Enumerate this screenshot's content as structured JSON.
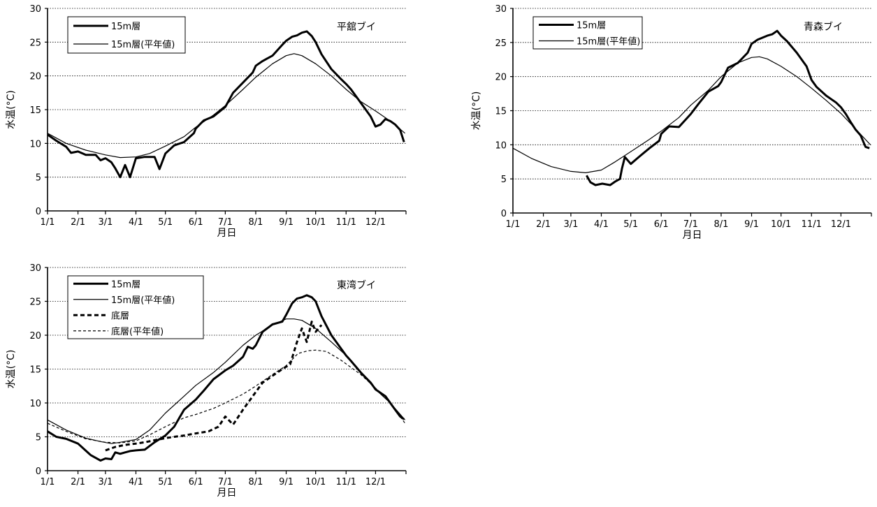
{
  "chart_data": [
    {
      "type": "line",
      "buoy": "平舘ブイ",
      "xlabel": "月日",
      "ylabel": "水温(°C)",
      "ylim": [
        0,
        30
      ],
      "yticks": [
        "0",
        "5",
        "10",
        "15",
        "20",
        "25",
        "30"
      ],
      "xlim": [
        1,
        366
      ],
      "xticks": [
        "1/1",
        "2/1",
        "3/1",
        "4/1",
        "5/1",
        "6/1",
        "7/1",
        "8/1",
        "9/1",
        "10/1",
        "11/1",
        "12/1"
      ],
      "grid": true,
      "legend_position": "top-left",
      "series": [
        {
          "name": "15m層",
          "style": "thick-solid",
          "x": [
            1,
            10,
            20,
            25,
            32,
            40,
            50,
            55,
            60,
            66,
            70,
            75,
            80,
            85,
            91,
            100,
            110,
            115,
            121,
            130,
            140,
            150,
            152,
            160,
            170,
            182,
            190,
            200,
            210,
            213,
            220,
            230,
            240,
            244,
            250,
            255,
            260,
            265,
            270,
            274,
            280,
            290,
            300,
            305,
            310,
            320,
            330,
            335,
            340,
            345,
            350,
            355,
            360,
            364
          ],
          "y": [
            11.3,
            10.4,
            9.5,
            8.6,
            8.8,
            8.3,
            8.3,
            7.5,
            7.8,
            7.2,
            6.3,
            5.0,
            6.8,
            5.0,
            7.8,
            8.0,
            8.0,
            6.2,
            8.5,
            9.7,
            10.2,
            11.5,
            12.2,
            13.4,
            14.0,
            15.4,
            17.5,
            19.0,
            20.5,
            21.5,
            22.2,
            23.0,
            24.6,
            25.2,
            25.8,
            26.0,
            26.4,
            26.6,
            25.9,
            25.0,
            23.2,
            21.0,
            19.5,
            18.8,
            18.0,
            16.0,
            14.0,
            12.5,
            12.8,
            13.6,
            13.3,
            12.8,
            12.0,
            10.2
          ]
        },
        {
          "name": "15m層(平年値)",
          "style": "thin-solid",
          "x": [
            1,
            20,
            40,
            60,
            75,
            91,
            105,
            121,
            140,
            152,
            170,
            182,
            200,
            213,
            230,
            244,
            252,
            260,
            274,
            290,
            305,
            320,
            335,
            350,
            365
          ],
          "y": [
            11.5,
            10.0,
            9.0,
            8.3,
            7.9,
            8.0,
            8.5,
            9.6,
            11.0,
            12.4,
            14.2,
            15.6,
            18.0,
            19.8,
            21.8,
            23.0,
            23.3,
            23.0,
            21.8,
            20.0,
            18.0,
            16.2,
            14.8,
            13.3,
            11.5
          ]
        }
      ]
    },
    {
      "type": "line",
      "buoy": "青森ブイ",
      "xlabel": "月日",
      "ylabel": "水温(°C)",
      "ylim": [
        0,
        30
      ],
      "yticks": [
        "0",
        "5",
        "10",
        "15",
        "20",
        "25",
        "30"
      ],
      "xlim": [
        1,
        366
      ],
      "xticks": [
        "1/1",
        "2/1",
        "3/1",
        "4/1",
        "5/1",
        "6/1",
        "7/1",
        "8/1",
        "9/1",
        "10/1",
        "11/1",
        "12/1"
      ],
      "grid": true,
      "legend_position": "top-left",
      "series": [
        {
          "name": "15m層",
          "style": "thick-solid",
          "x": [
            76,
            80,
            85,
            92,
            100,
            105,
            110,
            112,
            115,
            121,
            130,
            140,
            150,
            152,
            160,
            170,
            182,
            190,
            200,
            210,
            213,
            220,
            230,
            240,
            244,
            250,
            255,
            260,
            265,
            270,
            274,
            280,
            290,
            300,
            305,
            310,
            320,
            330,
            335,
            340,
            345,
            350,
            355,
            360,
            364
          ],
          "y": [
            5.5,
            4.5,
            4.1,
            4.3,
            4.1,
            4.6,
            5.0,
            6.5,
            8.2,
            7.2,
            8.3,
            9.5,
            10.6,
            11.6,
            12.7,
            12.6,
            14.5,
            16.0,
            17.8,
            18.6,
            19.2,
            21.3,
            22.0,
            23.5,
            24.8,
            25.4,
            25.7,
            26.0,
            26.2,
            26.7,
            26.0,
            25.2,
            23.5,
            21.5,
            19.5,
            18.5,
            17.2,
            16.2,
            15.5,
            14.5,
            13.3,
            12.2,
            11.4,
            9.7,
            9.5
          ]
        },
        {
          "name": "15m層(平年値)",
          "style": "thin-solid",
          "x": [
            1,
            20,
            40,
            60,
            75,
            91,
            105,
            121,
            140,
            152,
            170,
            182,
            200,
            213,
            230,
            244,
            252,
            260,
            274,
            290,
            305,
            320,
            335,
            350,
            365
          ],
          "y": [
            9.5,
            8.0,
            6.8,
            6.1,
            5.9,
            6.3,
            7.5,
            9.0,
            10.8,
            12.0,
            14.0,
            15.8,
            18.0,
            20.0,
            22.0,
            22.8,
            22.9,
            22.6,
            21.5,
            20.0,
            18.3,
            16.5,
            14.6,
            12.3,
            10.0
          ]
        }
      ]
    },
    {
      "type": "line",
      "buoy": "東湾ブイ",
      "xlabel": "月日",
      "ylabel": "水温(°C)",
      "ylim": [
        0,
        30
      ],
      "yticks": [
        "0",
        "5",
        "10",
        "15",
        "20",
        "25",
        "30"
      ],
      "xlim": [
        1,
        366
      ],
      "xticks": [
        "1/1",
        "2/1",
        "3/1",
        "4/1",
        "5/1",
        "6/1",
        "7/1",
        "8/1",
        "9/1",
        "10/1",
        "11/1",
        "12/1"
      ],
      "grid": true,
      "legend_position": "top-left",
      "series": [
        {
          "name": "15m層",
          "style": "thick-solid",
          "x": [
            1,
            10,
            20,
            32,
            45,
            55,
            60,
            66,
            70,
            75,
            80,
            85,
            91,
            100,
            110,
            121,
            130,
            140,
            152,
            160,
            170,
            182,
            190,
            200,
            205,
            210,
            213,
            220,
            230,
            240,
            244,
            250,
            255,
            260,
            265,
            270,
            274,
            280,
            290,
            300,
            305,
            310,
            320,
            330,
            335,
            340,
            345,
            350,
            355,
            360,
            364
          ],
          "y": [
            5.8,
            5.0,
            4.7,
            4.0,
            2.3,
            1.5,
            1.8,
            1.7,
            2.7,
            2.5,
            2.7,
            2.9,
            3.0,
            3.1,
            4.2,
            5.2,
            6.5,
            9.0,
            10.5,
            11.8,
            13.5,
            14.8,
            15.5,
            16.8,
            18.3,
            18.0,
            18.5,
            20.5,
            21.6,
            22.0,
            23.0,
            24.7,
            25.4,
            25.6,
            25.9,
            25.6,
            25.0,
            22.8,
            20.0,
            18.0,
            17.0,
            16.2,
            14.5,
            13.0,
            12.0,
            11.5,
            11.0,
            10.0,
            9.0,
            8.0,
            7.6
          ]
        },
        {
          "name": "15m層(平年値)",
          "style": "thin-solid",
          "x": [
            1,
            20,
            40,
            55,
            66,
            75,
            91,
            105,
            121,
            140,
            152,
            170,
            182,
            200,
            213,
            230,
            244,
            252,
            260,
            274,
            290,
            305,
            320,
            335,
            350,
            365
          ],
          "y": [
            7.5,
            6.0,
            4.8,
            4.3,
            4.0,
            4.2,
            4.6,
            6.0,
            8.5,
            11.0,
            12.6,
            14.5,
            16.0,
            18.5,
            20.0,
            21.5,
            22.4,
            22.4,
            22.2,
            21.0,
            19.0,
            17.0,
            14.5,
            12.0,
            10.0,
            7.5
          ]
        },
        {
          "name": "底層",
          "style": "thick-dashed",
          "x": [
            60,
            70,
            80,
            91,
            100,
            110,
            121,
            130,
            140,
            152,
            165,
            175,
            182,
            190,
            200,
            210,
            220,
            230,
            240,
            248,
            255,
            260,
            265,
            270,
            274,
            280
          ],
          "y": [
            3.0,
            3.5,
            3.8,
            4.0,
            4.2,
            4.5,
            4.8,
            5.0,
            5.2,
            5.5,
            5.8,
            6.5,
            8.0,
            6.8,
            9.0,
            11.0,
            13.0,
            14.0,
            15.0,
            15.7,
            19.0,
            21.0,
            19.0,
            22.0,
            20.5,
            21.5
          ]
        },
        {
          "name": "底層(平年値)",
          "style": "thin-dashed",
          "x": [
            1,
            20,
            40,
            60,
            75,
            91,
            105,
            121,
            140,
            152,
            170,
            182,
            200,
            213,
            230,
            244,
            256,
            266,
            274,
            285,
            300,
            320,
            335,
            350,
            365
          ],
          "y": [
            7.0,
            5.8,
            4.7,
            4.2,
            4.1,
            4.4,
            5.3,
            6.5,
            7.8,
            8.3,
            9.2,
            10.0,
            11.3,
            12.5,
            14.2,
            15.5,
            17.3,
            17.7,
            17.8,
            17.6,
            16.3,
            14.2,
            12.2,
            10.0,
            7.0
          ]
        }
      ]
    }
  ]
}
